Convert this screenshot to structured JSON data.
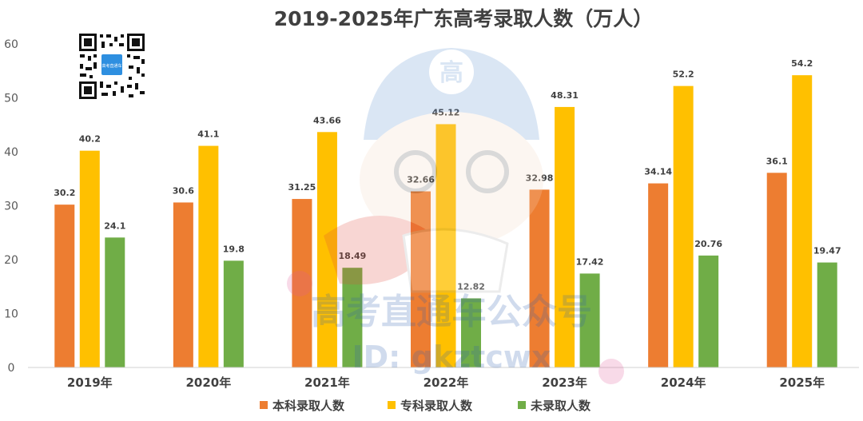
{
  "chart_data": {
    "type": "bar",
    "title": "2019-2025年广东高考录取人数（万人）",
    "categories": [
      "2019年",
      "2020年",
      "2021年",
      "2022年",
      "2023年",
      "2024年",
      "2025年"
    ],
    "series": [
      {
        "name": "本科录取人数",
        "color": "#ED7D31",
        "values": [
          30.2,
          30.6,
          31.25,
          32.66,
          32.98,
          34.14,
          36.1
        ]
      },
      {
        "name": "专科录取人数",
        "color": "#FFC000",
        "values": [
          40.2,
          41.1,
          43.66,
          45.12,
          48.31,
          52.2,
          54.2
        ]
      },
      {
        "name": "未录取人数",
        "color": "#70AD47",
        "values": [
          24.1,
          19.8,
          18.49,
          12.82,
          17.42,
          20.76,
          19.47
        ]
      }
    ],
    "ylim": [
      0,
      60
    ],
    "yticks": [
      0,
      10,
      20,
      30,
      40,
      50,
      60
    ],
    "xlabel": "",
    "ylabel": "",
    "grid": false,
    "legend": "bottom"
  },
  "watermark": {
    "line1": "高考直通车公众号",
    "line2": "ID: gkztcwx",
    "badge": "高"
  },
  "qr_code": {
    "label": "高考直通车"
  }
}
